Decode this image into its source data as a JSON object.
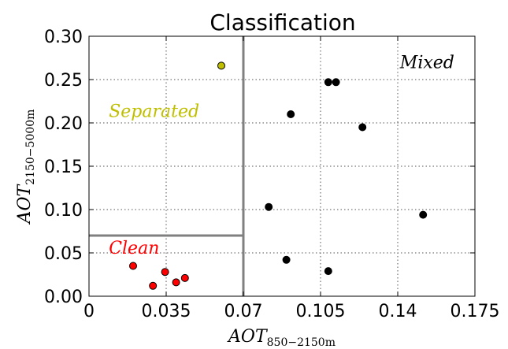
{
  "chart_data": {
    "type": "scatter",
    "title": "Classification",
    "xlabel": {
      "base": "AOT",
      "sub": "850−2150m"
    },
    "ylabel": {
      "base": "AOT",
      "sub": "2150−5000m"
    },
    "xlim": [
      0,
      0.175
    ],
    "ylim": [
      0,
      0.3
    ],
    "xticks": [
      0,
      0.035,
      0.07,
      0.105,
      0.14,
      0.175
    ],
    "xtick_labels": [
      "0",
      "0.035",
      "0.07",
      "0.105",
      "0.14",
      "0.175"
    ],
    "yticks": [
      0,
      0.05,
      0.1,
      0.15,
      0.2,
      0.25,
      0.3
    ],
    "ytick_labels": [
      "0.00",
      "0.05",
      "0.10",
      "0.15",
      "0.20",
      "0.25",
      "0.30"
    ],
    "grid": true,
    "thresholds": {
      "x": 0.07,
      "y": 0.07
    },
    "annotations": [
      {
        "text": "Mixed",
        "x": 0.141,
        "y": 0.263,
        "color": "#000000"
      },
      {
        "text": "Separated",
        "x": 0.009,
        "y": 0.207,
        "color": "#bfbf00"
      },
      {
        "text": "Clean",
        "x": 0.009,
        "y": 0.049,
        "color": "#ff0000"
      }
    ],
    "series": [
      {
        "color": "#000000",
        "x": [
          0.0815,
          0.0895,
          0.0915,
          0.1085,
          0.1085,
          0.112,
          0.124,
          0.1515
        ],
        "y": [
          0.103,
          0.042,
          0.21,
          0.247,
          0.029,
          0.247,
          0.195,
          0.094
        ]
      },
      {
        "color": "#bfbf00",
        "x": [
          0.06
        ],
        "y": [
          0.266
        ]
      },
      {
        "color": "#ff0000",
        "x": [
          0.02,
          0.029,
          0.0345,
          0.0395,
          0.0435
        ],
        "y": [
          0.035,
          0.012,
          0.028,
          0.016,
          0.021
        ]
      }
    ]
  }
}
